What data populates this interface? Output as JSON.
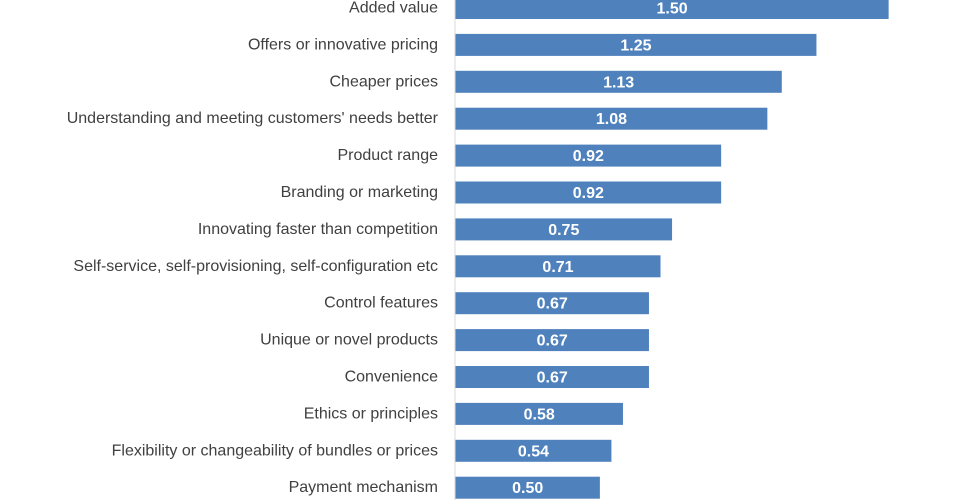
{
  "chart_data": {
    "type": "bar",
    "orientation": "horizontal",
    "categories": [
      "Added value",
      "Offers or innovative pricing",
      "Cheaper prices",
      "Understanding and meeting customers' needs better",
      "Product range",
      "Branding or marketing",
      "Innovating faster than competition",
      "Self-service, self-provisioning, self-configuration etc",
      "Control features",
      "Unique or novel products",
      "Convenience",
      "Ethics or principles",
      "Flexibility or changeability of bundles or prices",
      "Payment mechanism"
    ],
    "values": [
      1.5,
      1.25,
      1.13,
      1.08,
      0.92,
      0.92,
      0.75,
      0.71,
      0.67,
      0.67,
      0.67,
      0.58,
      0.54,
      0.5
    ],
    "value_labels": [
      "1.50",
      "1.25",
      "1.13",
      "1.08",
      "0.92",
      "0.92",
      "0.75",
      "0.71",
      "0.67",
      "0.67",
      "0.67",
      "0.58",
      "0.54",
      "0.50"
    ],
    "title": "",
    "xlabel": "",
    "ylabel": "",
    "xlim": [
      0,
      1.6
    ],
    "grid": false,
    "legend": "none",
    "bar_color": "#4f81bd",
    "axis_color": "#d9d9d9",
    "label_color": "#404040",
    "value_label_color": "#ffffff"
  }
}
